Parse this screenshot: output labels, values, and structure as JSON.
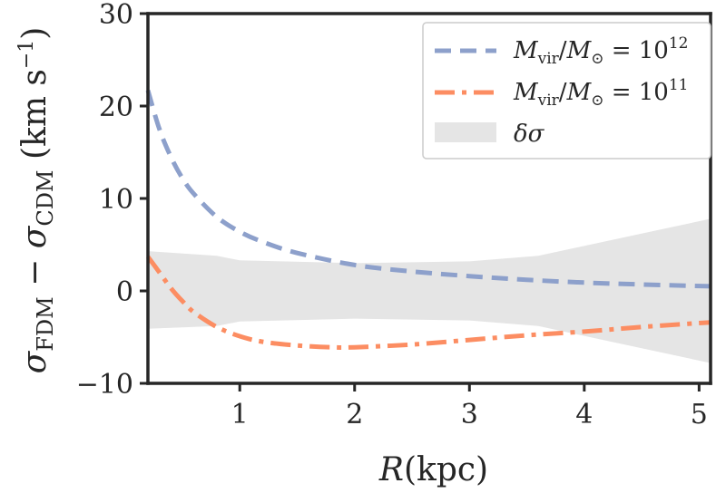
{
  "chart_data": {
    "type": "line",
    "title": "",
    "xlabel_var": "R",
    "xlabel_unit": "(kpc)",
    "ylabel_parts": {
      "sigma1": "σ",
      "sub1": "FDM",
      "minus": " − ",
      "sigma2": "σ",
      "sub2": "CDM",
      "unit_open": " (km s",
      "unit_exp": "−1",
      "unit_close": ")"
    },
    "xlim": [
      0.2,
      5.1
    ],
    "ylim": [
      -10,
      30
    ],
    "xticks": [
      1,
      2,
      3,
      4,
      5
    ],
    "xtick_labels": [
      "1",
      "2",
      "3",
      "4",
      "5"
    ],
    "yticks": [
      -10,
      0,
      10,
      20,
      30
    ],
    "ytick_labels": [
      "−10",
      "0",
      "10",
      "20",
      "30"
    ],
    "grid": false,
    "legend_position": "top-right",
    "series": [
      {
        "name": "M_vir/M_sun = 10^12",
        "legend_label": {
          "m1": "M",
          "sub1": "vir",
          "slash": "/",
          "m2": "M",
          "sub2": "⊙",
          "eq": " = 10",
          "exp": "12"
        },
        "color": "#8da0cb",
        "style": "dashed",
        "x": [
          0.2,
          0.3,
          0.4,
          0.5,
          0.6,
          0.8,
          1.0,
          1.2,
          1.5,
          2.0,
          2.5,
          3.0,
          3.5,
          4.0,
          4.5,
          5.1
        ],
        "y": [
          21.7,
          17.5,
          14.5,
          12.2,
          10.5,
          8.0,
          6.4,
          5.3,
          4.1,
          2.8,
          2.1,
          1.6,
          1.2,
          0.9,
          0.7,
          0.5
        ]
      },
      {
        "name": "M_vir/M_sun = 10^11",
        "legend_label": {
          "m1": "M",
          "sub1": "vir",
          "slash": "/",
          "m2": "M",
          "sub2": "⊙",
          "eq": " = 10",
          "exp": "11"
        },
        "color": "#fc8d62",
        "style": "dashdot",
        "x": [
          0.2,
          0.3,
          0.4,
          0.5,
          0.6,
          0.8,
          1.0,
          1.2,
          1.5,
          1.8,
          2.0,
          2.5,
          3.0,
          3.5,
          4.0,
          4.5,
          5.1
        ],
        "y": [
          3.7,
          2.0,
          0.3,
          -1.1,
          -2.3,
          -3.9,
          -4.9,
          -5.5,
          -5.9,
          -6.1,
          -6.1,
          -5.8,
          -5.3,
          -4.8,
          -4.4,
          -3.9,
          -3.4
        ]
      }
    ],
    "band": {
      "name": "delta sigma",
      "legend_label": {
        "delta": "δ",
        "sigma": "σ"
      },
      "color": "#e5e5e5",
      "x": [
        0.2,
        0.8,
        1.0,
        2.0,
        3.0,
        3.6,
        5.1
      ],
      "upper": [
        4.3,
        3.8,
        3.3,
        3.0,
        3.2,
        3.8,
        7.8
      ],
      "lower": [
        -4.1,
        -3.8,
        -3.3,
        -3.0,
        -3.2,
        -3.8,
        -7.8
      ]
    }
  }
}
